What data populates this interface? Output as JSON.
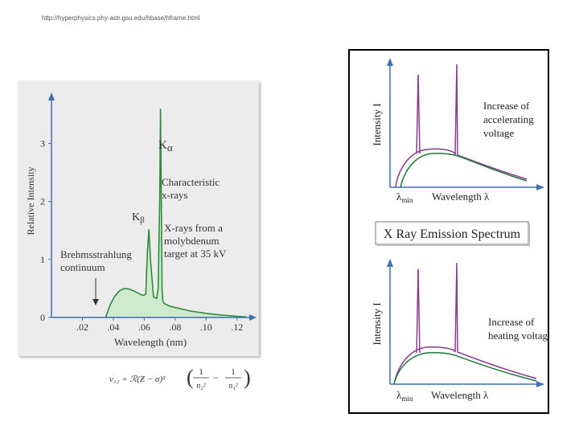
{
  "source_url": "http://hyperphysics.phy-astr.gsu.edu/hbase/hframe.html",
  "chart_data": {
    "type": "line",
    "xlabel": "Wavelength (nm)",
    "ylabel": "Relative Intensity",
    "xlim": [
      0,
      0.13
    ],
    "ylim": [
      0,
      3.7
    ],
    "x_ticks": [
      ".02",
      ".04",
      ".06",
      ".08",
      ".10",
      ".12"
    ],
    "x_tick_values": [
      0.02,
      0.04,
      0.06,
      0.08,
      0.1,
      0.12
    ],
    "y_ticks": [
      "0",
      "1",
      "2",
      "3"
    ],
    "y_tick_values": [
      0,
      1,
      2,
      3
    ],
    "series": [
      {
        "x": [
          0.035,
          0.038,
          0.041,
          0.044,
          0.047,
          0.05,
          0.053,
          0.056,
          0.059,
          0.061,
          0.062,
          0.063,
          0.064,
          0.066,
          0.068,
          0.069,
          0.07,
          0.0705,
          0.071,
          0.0715,
          0.072,
          0.073,
          0.076,
          0.08,
          0.085,
          0.09,
          0.1,
          0.11,
          0.12,
          0.126
        ],
        "y": [
          0,
          0.22,
          0.37,
          0.46,
          0.5,
          0.49,
          0.46,
          0.42,
          0.38,
          0.4,
          1.1,
          1.52,
          1.0,
          0.35,
          0.33,
          0.5,
          2.0,
          3.6,
          2.2,
          0.5,
          0.28,
          0.24,
          0.2,
          0.17,
          0.14,
          0.11,
          0.07,
          0.04,
          0.02,
          0.01
        ]
      }
    ],
    "peak_labels": {
      "k_alpha": "K",
      "k_alpha_sub": "α",
      "k_beta": "K",
      "k_beta_sub": "β"
    },
    "annotations": {
      "characteristic": [
        "Characteristic",
        "x-rays"
      ],
      "molybdenum": [
        "X-rays from a",
        "molybdenum",
        "target at 35 kV"
      ],
      "brems": [
        "Brehmsstrahlung",
        "continuum"
      ]
    },
    "colors": {
      "fill": "#cfeacd",
      "line": "#2e8b3a",
      "axis": "#3f6fb5",
      "text": "#333333"
    }
  },
  "formula": {
    "lhs": "ν₁₂ = ℛ(Ƶ − σ)²",
    "numerators": [
      "1",
      "1"
    ],
    "denominators": [
      "n₂²",
      "n₁²"
    ],
    "minus": "−"
  },
  "right_panel": {
    "title": "X Ray Emission Spectrum",
    "top": {
      "ylabel": "Intensity I",
      "xlabel": "Wavelength λ",
      "lambda_min": "λ",
      "lambda_min_sub": "min",
      "note": [
        "Increase of",
        "accelerating",
        "voltage"
      ]
    },
    "bottom": {
      "ylabel": "Intensity I",
      "xlabel": "Wavelength λ",
      "lambda_min": "λ",
      "lambda_min_sub": "min",
      "note": [
        "Increase of",
        "heating voltage"
      ]
    },
    "colors": {
      "purple": "#8a3c8e",
      "green": "#1f7a3a",
      "axis": "#3f6fb5"
    }
  }
}
